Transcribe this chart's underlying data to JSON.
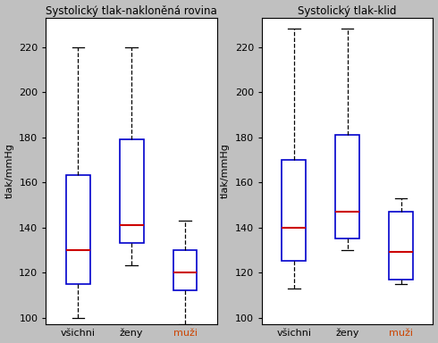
{
  "plot1": {
    "title": "Systolický tlak-nakloněná rovina",
    "categories": [
      "všichni",
      "ženy",
      "muži"
    ],
    "cat_colors": [
      "#000000",
      "#000000",
      "#cc4400"
    ],
    "boxes": [
      {
        "whislo": 100,
        "q1": 115,
        "med": 130,
        "q3": 163,
        "whishi": 220
      },
      {
        "whislo": 123,
        "q1": 133,
        "med": 141,
        "q3": 179,
        "whishi": 220
      },
      {
        "whislo": 97,
        "q1": 112,
        "med": 120,
        "q3": 130,
        "whishi": 143
      }
    ]
  },
  "plot2": {
    "title": "Systolický tlak-klid",
    "categories": [
      "všichni",
      "ženy",
      "muži"
    ],
    "cat_colors": [
      "#000000",
      "#000000",
      "#cc4400"
    ],
    "boxes": [
      {
        "whislo": 113,
        "q1": 125,
        "med": 140,
        "q3": 170,
        "whishi": 228
      },
      {
        "whislo": 130,
        "q1": 135,
        "med": 147,
        "q3": 181,
        "whishi": 228
      },
      {
        "whislo": 115,
        "q1": 117,
        "med": 129,
        "q3": 147,
        "whishi": 153
      }
    ]
  },
  "ylabel": "tlak/mmHg",
  "ylim": [
    97,
    233
  ],
  "yticks": [
    100,
    120,
    140,
    160,
    180,
    200,
    220
  ],
  "box_color": "#0000cc",
  "median_color": "#cc0000",
  "whisker_color": "#000000",
  "bg_color": "#c0c0c0",
  "plot_bg": "#ffffff",
  "title_color": "#000000",
  "tick_color": "#000000",
  "title_fontsize": 8.5,
  "label_fontsize": 8,
  "tick_fontsize": 8,
  "box_width": 0.45
}
